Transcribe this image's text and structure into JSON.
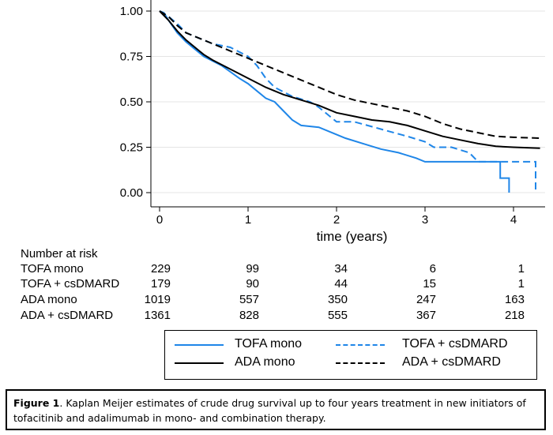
{
  "chart_data": {
    "type": "line",
    "xlabel": "time (years)",
    "ylabel": "",
    "xlim": [
      0,
      4.3
    ],
    "ylim": [
      0,
      1.0
    ],
    "x_ticks": [
      "0",
      "1",
      "2",
      "3",
      "4"
    ],
    "y_ticks": [
      "0.00",
      "0.25",
      "0.50",
      "0.75",
      "1.00"
    ],
    "grid": "horizontal",
    "legend_position": "bottom",
    "series": [
      {
        "name": "TOFA mono",
        "color": "#1f86e8",
        "style": "solid",
        "points": [
          [
            0,
            1.0
          ],
          [
            0.05,
            0.99
          ],
          [
            0.1,
            0.95
          ],
          [
            0.2,
            0.88
          ],
          [
            0.3,
            0.83
          ],
          [
            0.5,
            0.75
          ],
          [
            0.7,
            0.7
          ],
          [
            0.9,
            0.63
          ],
          [
            1.0,
            0.6
          ],
          [
            1.1,
            0.56
          ],
          [
            1.2,
            0.52
          ],
          [
            1.3,
            0.5
          ],
          [
            1.4,
            0.45
          ],
          [
            1.5,
            0.4
          ],
          [
            1.6,
            0.37
          ],
          [
            1.8,
            0.36
          ],
          [
            2.0,
            0.32
          ],
          [
            2.1,
            0.3
          ],
          [
            2.3,
            0.27
          ],
          [
            2.5,
            0.24
          ],
          [
            2.7,
            0.22
          ],
          [
            2.9,
            0.19
          ],
          [
            3.0,
            0.17
          ],
          [
            3.2,
            0.17
          ],
          [
            3.5,
            0.17
          ],
          [
            3.8,
            0.17
          ],
          [
            3.85,
            0.17
          ],
          [
            3.85,
            0.08
          ],
          [
            3.95,
            0.08
          ],
          [
            3.95,
            0.0
          ]
        ]
      },
      {
        "name": "TOFA + csDMARD",
        "color": "#1f86e8",
        "style": "dashed",
        "points": [
          [
            0,
            1.0
          ],
          [
            0.1,
            0.97
          ],
          [
            0.2,
            0.93
          ],
          [
            0.3,
            0.88
          ],
          [
            0.4,
            0.86
          ],
          [
            0.6,
            0.82
          ],
          [
            0.8,
            0.8
          ],
          [
            1.0,
            0.75
          ],
          [
            1.1,
            0.7
          ],
          [
            1.2,
            0.63
          ],
          [
            1.3,
            0.58
          ],
          [
            1.5,
            0.53
          ],
          [
            1.7,
            0.5
          ],
          [
            1.8,
            0.47
          ],
          [
            2.0,
            0.39
          ],
          [
            2.2,
            0.39
          ],
          [
            2.5,
            0.35
          ],
          [
            2.8,
            0.31
          ],
          [
            3.0,
            0.28
          ],
          [
            3.1,
            0.25
          ],
          [
            3.3,
            0.25
          ],
          [
            3.5,
            0.22
          ],
          [
            3.6,
            0.17
          ],
          [
            4.0,
            0.17
          ],
          [
            4.25,
            0.17
          ],
          [
            4.25,
            0.0
          ]
        ]
      },
      {
        "name": "ADA mono",
        "color": "#000000",
        "style": "solid",
        "points": [
          [
            0,
            1.0
          ],
          [
            0.1,
            0.95
          ],
          [
            0.2,
            0.89
          ],
          [
            0.3,
            0.84
          ],
          [
            0.4,
            0.8
          ],
          [
            0.5,
            0.76
          ],
          [
            0.6,
            0.73
          ],
          [
            0.8,
            0.68
          ],
          [
            1.0,
            0.63
          ],
          [
            1.2,
            0.58
          ],
          [
            1.4,
            0.54
          ],
          [
            1.6,
            0.51
          ],
          [
            1.8,
            0.48
          ],
          [
            2.0,
            0.44
          ],
          [
            2.2,
            0.42
          ],
          [
            2.4,
            0.4
          ],
          [
            2.6,
            0.39
          ],
          [
            2.8,
            0.37
          ],
          [
            3.0,
            0.34
          ],
          [
            3.2,
            0.31
          ],
          [
            3.4,
            0.29
          ],
          [
            3.6,
            0.27
          ],
          [
            3.8,
            0.255
          ],
          [
            4.0,
            0.25
          ],
          [
            4.3,
            0.245
          ]
        ]
      },
      {
        "name": "ADA + csDMARD",
        "color": "#000000",
        "style": "dashed",
        "points": [
          [
            0,
            1.0
          ],
          [
            0.1,
            0.97
          ],
          [
            0.2,
            0.92
          ],
          [
            0.3,
            0.88
          ],
          [
            0.5,
            0.84
          ],
          [
            0.7,
            0.8
          ],
          [
            0.9,
            0.76
          ],
          [
            1.0,
            0.74
          ],
          [
            1.2,
            0.7
          ],
          [
            1.4,
            0.66
          ],
          [
            1.6,
            0.62
          ],
          [
            1.8,
            0.58
          ],
          [
            2.0,
            0.54
          ],
          [
            2.2,
            0.51
          ],
          [
            2.4,
            0.49
          ],
          [
            2.6,
            0.47
          ],
          [
            2.8,
            0.45
          ],
          [
            3.0,
            0.42
          ],
          [
            3.2,
            0.38
          ],
          [
            3.4,
            0.35
          ],
          [
            3.6,
            0.33
          ],
          [
            3.8,
            0.31
          ],
          [
            4.0,
            0.305
          ],
          [
            4.3,
            0.3
          ]
        ]
      }
    ]
  },
  "risk_table": {
    "title": "Number at risk",
    "rows": [
      {
        "label": "TOFA mono",
        "values": [
          "229",
          "99",
          "34",
          "6",
          "1"
        ]
      },
      {
        "label": "TOFA + csDMARD",
        "values": [
          "179",
          "90",
          "44",
          "15",
          "1"
        ]
      },
      {
        "label": "ADA mono",
        "values": [
          "1019",
          "557",
          "350",
          "247",
          "163"
        ]
      },
      {
        "label": "ADA + csDMARD",
        "values": [
          "1361",
          "828",
          "555",
          "367",
          "218"
        ]
      }
    ]
  },
  "legend": {
    "items": [
      "TOFA mono",
      "TOFA + csDMARD",
      "ADA mono",
      "ADA + csDMARD"
    ]
  },
  "caption": {
    "label": "Figure 1",
    "text": ". Kaplan Meijer estimates of crude drug survival up to four years treatment in  new initiators of tofacitinib and adalimumab in mono- and combination therapy."
  }
}
